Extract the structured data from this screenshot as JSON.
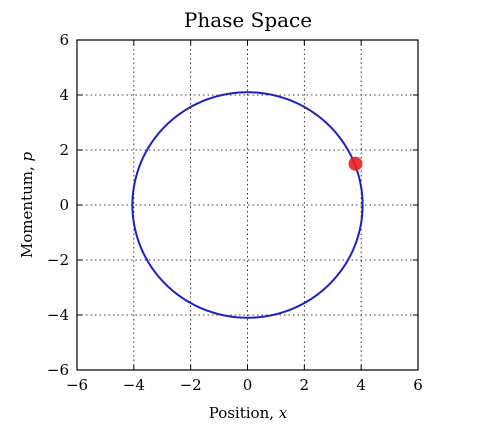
{
  "chart_data": {
    "type": "line",
    "title": "Phase Space",
    "xlabel": "Position, x",
    "xlabel_parts": {
      "text": "Position, ",
      "var": "x"
    },
    "ylabel": "Momentum, p",
    "ylabel_parts": {
      "text": "Momentum, ",
      "var": "p"
    },
    "xlim": [
      -6,
      6
    ],
    "ylim": [
      -6,
      6
    ],
    "xticks": [
      -6,
      -4,
      -2,
      0,
      2,
      4,
      6
    ],
    "yticks": [
      -6,
      -4,
      -2,
      0,
      2,
      4,
      6
    ],
    "xtick_labels": [
      "−6",
      "−4",
      "−2",
      "0",
      "2",
      "4",
      "6"
    ],
    "ytick_labels": [
      "−6",
      "−4",
      "−2",
      "0",
      "2",
      "4",
      "6"
    ],
    "grid": true,
    "series": [
      {
        "type": "line",
        "shape": "ellipse",
        "center": [
          0,
          0
        ],
        "rx": 4.05,
        "ry": 4.1,
        "color": "#1f1fc8"
      },
      {
        "type": "scatter",
        "points": [
          [
            3.8,
            1.5
          ]
        ],
        "color": "#e8201e"
      }
    ]
  }
}
